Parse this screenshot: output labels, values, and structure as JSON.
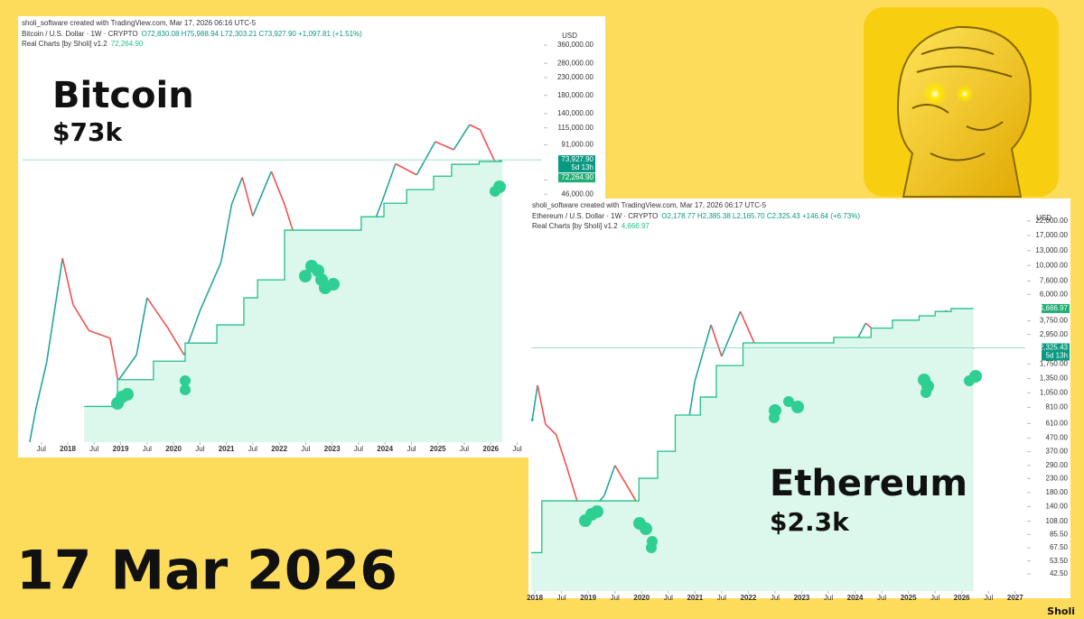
{
  "page": {
    "date": "17 Mar 2026",
    "credit": "Sholi"
  },
  "chart_data": [
    {
      "type": "line",
      "log_y": true,
      "grid": false,
      "created": "sholi_software created with TradingView.com, Mar 17, 2026 06:16 UTC-5",
      "ohlc": "O72,830.08 H75,988.94 L72,303.21 C73,927.90 +1,097.81 (+1.51%)",
      "currency": "USD",
      "annotations": [
        "Bitcoin",
        "$73k"
      ],
      "last_price": {
        "value": 73927.9,
        "label": "73,927.90"
      },
      "countdown": "5d 13h",
      "indicator_last": {
        "value": 72264.9,
        "label": "72,264.90"
      },
      "xlim": [
        2017.145,
        2026.97
      ],
      "ylim": [
        1500,
        408000
      ],
      "xticks": [
        {
          "value": 2017.5,
          "label": "Jul"
        },
        2018,
        {
          "value": 2018.5,
          "label": "Jul"
        },
        2019,
        {
          "value": 2019.5,
          "label": "Jul"
        },
        2020,
        {
          "value": 2020.5,
          "label": "Jul"
        },
        2021,
        {
          "value": 2021.5,
          "label": "Jul"
        },
        2022,
        {
          "value": 2022.5,
          "label": "Jul"
        },
        2023,
        {
          "value": 2023.5,
          "label": "Jul"
        },
        2024,
        {
          "value": 2024.5,
          "label": "Jul"
        },
        2025,
        {
          "value": 2025.5,
          "label": "Jul"
        },
        2026,
        {
          "value": 2026.5,
          "label": "Jul"
        }
      ],
      "yticks": [
        {
          "value": 46000,
          "label": "46,000.00"
        },
        {
          "value": 56000,
          "label": "56,000.00"
        },
        {
          "value": 91000,
          "label": "91,000.00"
        },
        {
          "value": 115000,
          "label": "115,000.00"
        },
        {
          "value": 140000,
          "label": "140,000.00"
        },
        {
          "value": 180000,
          "label": "180,000.00"
        },
        {
          "value": 230000,
          "label": "230,000.00"
        },
        {
          "value": 280000,
          "label": "280,000.00"
        },
        {
          "value": 360000,
          "label": "360,000.00"
        }
      ],
      "series": [
        {
          "name": "Bitcoin / U.S. Dollar · 1W · CRYPTO",
          "style": "line",
          "up_color": "#26a69a",
          "down_color": "#ef5350",
          "x": [
            2017.2,
            2017.4,
            2017.6,
            2017.9,
            2018.1,
            2018.4,
            2018.8,
            2018.95,
            2019.3,
            2019.5,
            2019.9,
            2020.2,
            2020.5,
            2020.9,
            2021.1,
            2021.3,
            2021.5,
            2021.85,
            2022.1,
            2022.4,
            2022.9,
            2023.2,
            2023.7,
            2023.95,
            2024.2,
            2024.6,
            2024.95,
            2025.3,
            2025.6,
            2025.8,
            2025.95,
            2026.1,
            2026.2
          ],
          "values": [
            1100,
            2400,
            4500,
            19000,
            10000,
            7000,
            6300,
            3500,
            5000,
            11000,
            7200,
            5000,
            9200,
            18000,
            40000,
            58000,
            34000,
            63000,
            40000,
            20000,
            16500,
            28000,
            26000,
            42000,
            70000,
            60000,
            95000,
            85000,
            120000,
            112000,
            88000,
            70000,
            73927.9
          ]
        },
        {
          "name": "Real Charts [by Sholi] v1.2",
          "style": "step",
          "color": "#22c08a",
          "fill": "#dcf7ec",
          "x": [
            2018.31,
            2018.94,
            2019.62,
            2020.22,
            2020.82,
            2021.33,
            2021.59,
            2022.1,
            2023.55,
            2023.98,
            2024.41,
            2024.92,
            2025.26,
            2025.78,
            2026.22
          ],
          "values": [
            2456,
            3555,
            4590,
            5890,
            7570,
            11000,
            14100,
            28000,
            33700,
            40600,
            49000,
            59000,
            69500,
            72264.9,
            72264.9
          ]
        }
      ]
    },
    {
      "type": "line",
      "log_y": true,
      "grid": false,
      "created": "sholi_software created with TradingView.com, Mar 17, 2026 06:17 UTC-5",
      "ohlc": "O2,178.77 H2,385.38 L2,165.70 C2,325.43 +146.64 (+6.73%)",
      "currency": "USD",
      "annotations": [
        "Ethereum",
        "$2.3k"
      ],
      "last_price": {
        "value": 2325.43,
        "label": "2,325.43"
      },
      "countdown": "5d 13h",
      "indicator_last": {
        "value": 4666.97,
        "label": "4,666.97"
      },
      "xlim": [
        2017.93,
        2027.19
      ],
      "ylim": [
        31.4,
        27900
      ],
      "xticks": [
        2018,
        {
          "value": 2018.5,
          "label": "Jul"
        },
        2019,
        {
          "value": 2019.5,
          "label": "Jul"
        },
        2020,
        {
          "value": 2020.5,
          "label": "Jul"
        },
        2021,
        {
          "value": 2021.5,
          "label": "Jul"
        },
        2022,
        {
          "value": 2022.5,
          "label": "Jul"
        },
        2023,
        {
          "value": 2023.5,
          "label": "Jul"
        },
        2024,
        {
          "value": 2024.5,
          "label": "Jul"
        },
        2025,
        {
          "value": 2025.5,
          "label": "Jul"
        },
        2026,
        {
          "value": 2026.5,
          "label": "Jul"
        },
        2027
      ],
      "yticks": [
        {
          "value": 42.5,
          "label": "42.50"
        },
        {
          "value": 53.5,
          "label": "53.50"
        },
        {
          "value": 67.5,
          "label": "67.50"
        },
        {
          "value": 85.5,
          "label": "85.50"
        },
        {
          "value": 108,
          "label": "108.00"
        },
        {
          "value": 140,
          "label": "140.00"
        },
        {
          "value": 180,
          "label": "180.00"
        },
        {
          "value": 230,
          "label": "230.00"
        },
        {
          "value": 290,
          "label": "290.00"
        },
        {
          "value": 370,
          "label": "370.00"
        },
        {
          "value": 470,
          "label": "470.00"
        },
        {
          "value": 610,
          "label": "610.00"
        },
        {
          "value": 810,
          "label": "810.00"
        },
        {
          "value": 1050,
          "label": "1,050.00"
        },
        {
          "value": 1350,
          "label": "1,350.00"
        },
        {
          "value": 1750,
          "label": "1,750.00"
        },
        {
          "value": 2950,
          "label": "2,950.00"
        },
        {
          "value": 3750,
          "label": "3,750.00"
        },
        {
          "value": 6000,
          "label": "6,000.00"
        },
        {
          "value": 7600,
          "label": "7,600.00"
        },
        {
          "value": 10000,
          "label": "10,000.00"
        },
        {
          "value": 13000,
          "label": "13,000.00"
        },
        {
          "value": 17000,
          "label": "17,000.00"
        },
        {
          "value": 22000,
          "label": "22,000.00"
        }
      ],
      "series": [
        {
          "name": "Ethereum / U.S. Dollar · 1W · CRYPTO",
          "style": "line",
          "up_color": "#26a69a",
          "down_color": "#ef5350",
          "x": [
            2017.95,
            2018.05,
            2018.2,
            2018.4,
            2018.6,
            2018.9,
            2019.3,
            2019.5,
            2019.8,
            2020.0,
            2020.2,
            2020.5,
            2020.8,
            2021.0,
            2021.3,
            2021.5,
            2021.85,
            2022.1,
            2022.45,
            2022.8,
            2023.2,
            2023.7,
            2023.95,
            2024.2,
            2024.6,
            2024.95,
            2025.3,
            2025.6,
            2025.7,
            2025.9,
            2026.05,
            2026.12,
            2026.22
          ],
          "values": [
            650,
            1200,
            600,
            500,
            280,
            110,
            170,
            290,
            180,
            130,
            110,
            240,
            400,
            1300,
            3500,
            2000,
            4430,
            2600,
            1050,
            1300,
            1800,
            1600,
            2300,
            3600,
            2600,
            3500,
            1600,
            3700,
            4500,
            3900,
            2900,
            1900,
            2325.43
          ]
        },
        {
          "name": "Real Charts [by Sholi] v1.2",
          "style": "step",
          "color": "#22c08a",
          "fill": "#dcf7ec",
          "x": [
            2017.93,
            2018.13,
            2019.95,
            2020.3,
            2020.63,
            2021.1,
            2021.4,
            2021.9,
            2023.6,
            2024.3,
            2024.7,
            2025.2,
            2025.5,
            2025.8,
            2026.22
          ],
          "values": [
            62,
            155,
            231,
            373,
            708,
            973,
            1700,
            2540,
            2800,
            3300,
            3800,
            4100,
            4430,
            4666.97,
            4666.97
          ]
        }
      ]
    }
  ]
}
